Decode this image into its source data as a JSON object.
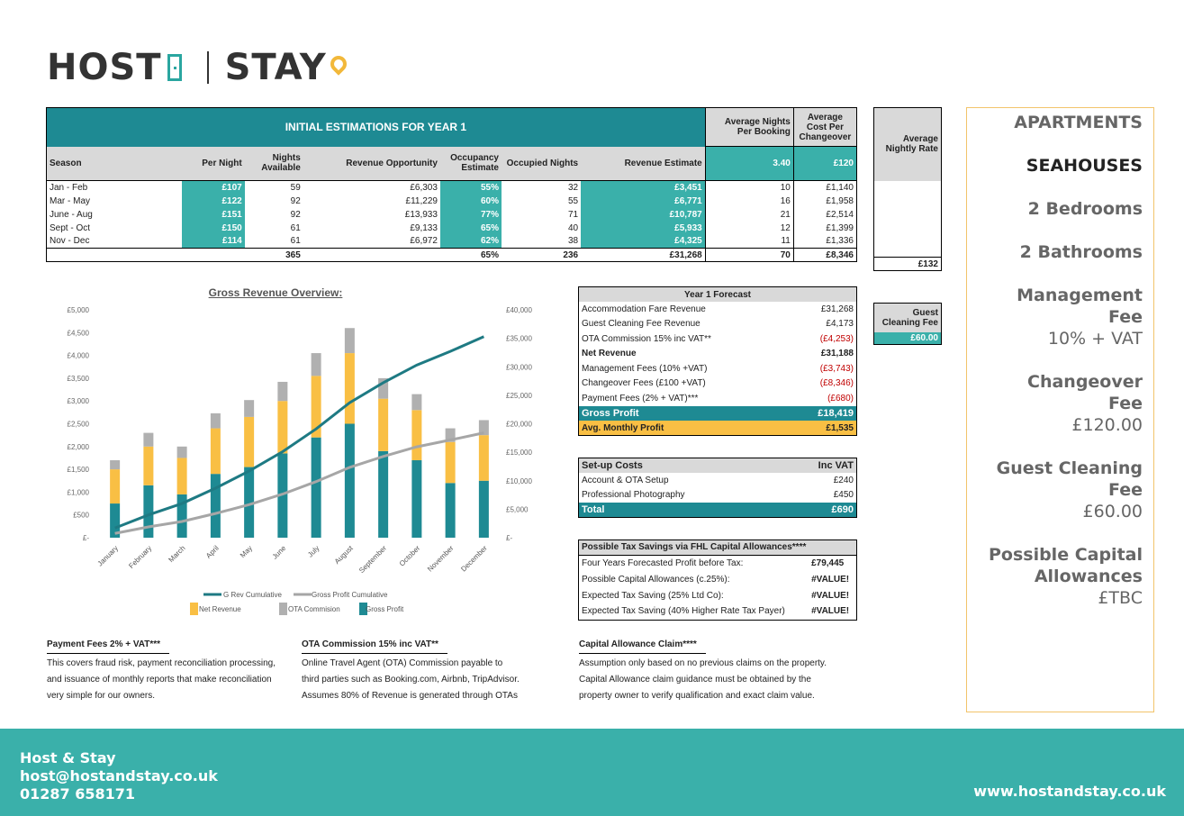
{
  "logo": {
    "host": "HOST",
    "stay": "STAY"
  },
  "main_table": {
    "title": "INITIAL ESTIMATIONS FOR YEAR 1",
    "avg_nights_header": "Average Nights Per Booking",
    "avg_cost_header": "Average Cost Per Changeover",
    "avg_nights_value": "3.40",
    "avg_cost_value": "£120",
    "headers": [
      "Season",
      "Per Night",
      "Nights Available",
      "Revenue Opportunity",
      "Occupancy Estimate",
      "Occupied Nights",
      "Revenue Estimate"
    ],
    "rows": [
      [
        "Jan - Feb",
        "£107",
        "59",
        "£6,303",
        "55%",
        "32",
        "£3,451",
        "10",
        "£1,140"
      ],
      [
        "Mar - May",
        "£122",
        "92",
        "£11,229",
        "60%",
        "55",
        "£6,771",
        "16",
        "£1,958"
      ],
      [
        "June - Aug",
        "£151",
        "92",
        "£13,933",
        "77%",
        "71",
        "£10,787",
        "21",
        "£2,514"
      ],
      [
        "Sept - Oct",
        "£150",
        "61",
        "£9,133",
        "65%",
        "40",
        "£5,933",
        "12",
        "£1,399"
      ],
      [
        "Nov - Dec",
        "£114",
        "61",
        "£6,972",
        "62%",
        "38",
        "£4,325",
        "11",
        "£1,336"
      ]
    ],
    "totals": [
      "365",
      "65%",
      "236",
      "£31,268",
      "70",
      "£8,346"
    ]
  },
  "avg_rate": {
    "header": "Average Nightly Rate",
    "value": "£132"
  },
  "guest_fee": {
    "header": "Guest Cleaning Fee",
    "value": "£60.00"
  },
  "chart_data": {
    "type": "bar",
    "title": "Gross Revenue Overview:",
    "categories": [
      "January",
      "February",
      "March",
      "April",
      "May",
      "June",
      "July",
      "August",
      "September",
      "October",
      "November",
      "December"
    ],
    "y_left_ticks": [
      "£5,000",
      "£4,500",
      "£4,000",
      "£3,500",
      "£3,000",
      "£2,500",
      "£2,000",
      "£1,500",
      "£1,000",
      "£500",
      "£-"
    ],
    "y_right_ticks": [
      "£40,000",
      "£35,000",
      "£30,000",
      "£25,000",
      "£20,000",
      "£15,000",
      "£10,000",
      "£5,000",
      "£-"
    ],
    "ylim_left": [
      0,
      5000
    ],
    "ylim_right": [
      0,
      40000
    ],
    "series": [
      {
        "name": "Gross Profit",
        "values": [
          750,
          1150,
          950,
          1400,
          1550,
          1850,
          2200,
          2500,
          1900,
          1700,
          1200,
          1250
        ]
      },
      {
        "name": "Net Revenue",
        "values": [
          750,
          850,
          800,
          1000,
          1100,
          1150,
          1350,
          1550,
          1150,
          1100,
          900,
          1000
        ]
      },
      {
        "name": "OTA Commision",
        "values": [
          200,
          300,
          250,
          330,
          370,
          420,
          500,
          550,
          450,
          350,
          300,
          330
        ]
      },
      {
        "name": "G Rev Cumulative",
        "values": [
          1700,
          4000,
          6000,
          8700,
          11700,
          15100,
          19100,
          23700,
          27200,
          30300,
          32700,
          35300
        ]
      },
      {
        "name": "Gross Profit Cumulative",
        "values": [
          750,
          1900,
          2850,
          4250,
          5800,
          7650,
          9850,
          12350,
          14250,
          15950,
          17150,
          18400
        ]
      }
    ],
    "colors": {
      "gross_profit": "#1e8a93",
      "net_revenue": "#f9bf44",
      "ota": "#b0b0b0",
      "cum_rev": "#1e7a83",
      "cum_profit": "#a6a6a6"
    }
  },
  "forecast": {
    "title": "Year 1 Forecast",
    "rows": [
      [
        "Accommodation Fare Revenue",
        "£31,268"
      ],
      [
        "Guest Cleaning Fee Revenue",
        "£4,173"
      ],
      [
        "OTA Commission 15% inc VAT**",
        "(£4,253)"
      ],
      [
        "Net Revenue",
        "£31,188"
      ],
      [
        "Management Fees (10% +VAT)",
        "(£3,743)"
      ],
      [
        "Changeover Fees (£100 +VAT)",
        "(£8,346)"
      ],
      [
        "Payment Fees (2%  + VAT)***",
        "(£680)"
      ]
    ],
    "gross_profit": [
      "Gross Profit",
      "£18,419"
    ],
    "monthly": [
      "Avg. Monthly Profit",
      "£1,535"
    ]
  },
  "setup": {
    "title": "Set-up Costs",
    "title_r": "Inc VAT",
    "rows": [
      [
        "Account & OTA Setup",
        "£240"
      ],
      [
        "Professional Photography",
        "£450"
      ]
    ],
    "total": [
      "Total",
      "£690"
    ]
  },
  "tax": {
    "title": "Possible Tax Savings via FHL Capital Allowances****",
    "rows": [
      [
        "Four Years Forecasted Profit before Tax:",
        "£79,445"
      ],
      [
        "Possible Capital Allowances (c.25%):",
        "#VALUE!"
      ],
      [
        "Expected Tax Saving (25% Ltd Co):",
        "#VALUE!"
      ],
      [
        "Expected Tax Saving (40% Higher Rate Tax Payer)",
        "#VALUE!"
      ]
    ]
  },
  "notes": {
    "payment_title": "Payment Fees 2% + VAT***",
    "payment_lines": [
      "This covers fraud risk, payment reconciliation processing,",
      "and issuance of monthly reports that make reconciliation",
      "very simple for our owners."
    ],
    "ota_title": "OTA Commission 15% inc VAT**",
    "ota_lines": [
      "Online Travel Agent (OTA) Commission payable to",
      "third parties such as Booking.com, Airbnb, TripAdvisor.",
      "Assumes 80% of Revenue is generated through OTAs"
    ],
    "capital_title": "Capital Allowance Claim****",
    "capital_lines": [
      "Assumption only based on no previous claims on the property.",
      "Capital Allowance claim guidance must be obtained by the",
      "property owner to verify qualification and exact claim value."
    ]
  },
  "panel": {
    "type": "APARTMENTS",
    "location": "SEAHOUSES",
    "bedrooms": "2 Bedrooms",
    "bathrooms": "2 Bathrooms",
    "mgmt_label_1": "Management",
    "mgmt_label_2": "Fee",
    "mgmt_value": "10% + VAT",
    "change_label_1": "Changeover",
    "change_label_2": "Fee",
    "change_value": "£120.00",
    "guest_label_1": "Guest Cleaning",
    "guest_label_2": "Fee",
    "guest_value": "£60.00",
    "cap_label_1": "Possible Capital",
    "cap_label_2": "Allowances",
    "cap_value": "£TBC"
  },
  "footer": {
    "company": "Host & Stay",
    "email": "host@hostandstay.co.uk",
    "phone": "01287 658171",
    "website": "www.hostandstay.co.uk"
  }
}
